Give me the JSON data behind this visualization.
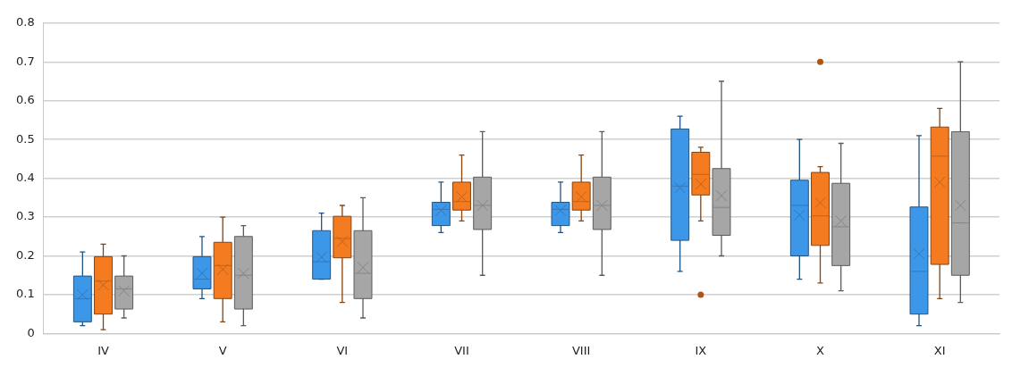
{
  "chart_data": {
    "type": "box",
    "categories": [
      "IV",
      "V",
      "VI",
      "VII",
      "VIII",
      "IX",
      "X",
      "XI"
    ],
    "ylim": [
      0,
      0.8
    ],
    "yticks": [
      0,
      0.1,
      0.2,
      0.3,
      0.4,
      0.5,
      0.6,
      0.7,
      0.8
    ],
    "grid": "y",
    "series": [
      {
        "color": "#3d97e8",
        "boxes": [
          {
            "low": 0.02,
            "q1": 0.03,
            "median": 0.09,
            "q3": 0.148,
            "high": 0.21,
            "mean": 0.1
          },
          {
            "low": 0.09,
            "q1": 0.115,
            "median": 0.14,
            "q3": 0.198,
            "high": 0.25,
            "mean": 0.155
          },
          {
            "low": 0.14,
            "q1": 0.14,
            "median": 0.185,
            "q3": 0.265,
            "high": 0.31,
            "mean": 0.197
          },
          {
            "low": 0.26,
            "q1": 0.278,
            "median": 0.32,
            "q3": 0.338,
            "high": 0.39,
            "mean": 0.317
          },
          {
            "low": 0.26,
            "q1": 0.278,
            "median": 0.32,
            "q3": 0.338,
            "high": 0.39,
            "mean": 0.317
          },
          {
            "low": 0.16,
            "q1": 0.24,
            "median": 0.38,
            "q3": 0.527,
            "high": 0.56,
            "mean": 0.375
          },
          {
            "low": 0.14,
            "q1": 0.2,
            "median": 0.33,
            "q3": 0.395,
            "high": 0.5,
            "mean": 0.305
          },
          {
            "low": 0.02,
            "q1": 0.05,
            "median": 0.16,
            "q3": 0.326,
            "high": 0.51,
            "mean": 0.205
          }
        ]
      },
      {
        "color": "#f47b20",
        "boxes": [
          {
            "low": 0.01,
            "q1": 0.05,
            "median": 0.135,
            "q3": 0.198,
            "high": 0.23,
            "mean": 0.125
          },
          {
            "low": 0.03,
            "q1": 0.09,
            "median": 0.175,
            "q3": 0.235,
            "high": 0.3,
            "mean": 0.165
          },
          {
            "low": 0.08,
            "q1": 0.195,
            "median": 0.245,
            "q3": 0.302,
            "high": 0.33,
            "mean": 0.237
          },
          {
            "low": 0.29,
            "q1": 0.318,
            "median": 0.34,
            "q3": 0.39,
            "high": 0.46,
            "mean": 0.352
          },
          {
            "low": 0.29,
            "q1": 0.318,
            "median": 0.34,
            "q3": 0.39,
            "high": 0.46,
            "mean": 0.352
          },
          {
            "low": 0.29,
            "q1": 0.357,
            "median": 0.41,
            "q3": 0.467,
            "high": 0.48,
            "mean": 0.385,
            "outliers": [
              0.1
            ]
          },
          {
            "low": 0.13,
            "q1": 0.227,
            "median": 0.303,
            "q3": 0.415,
            "high": 0.43,
            "mean": 0.337,
            "outliers": [
              0.7
            ]
          },
          {
            "low": 0.09,
            "q1": 0.178,
            "median": 0.457,
            "q3": 0.532,
            "high": 0.58,
            "mean": 0.39
          }
        ]
      },
      {
        "color": "#a6a6a6",
        "boxes": [
          {
            "low": 0.04,
            "q1": 0.063,
            "median": 0.115,
            "q3": 0.148,
            "high": 0.2,
            "mean": 0.11
          },
          {
            "low": 0.02,
            "q1": 0.063,
            "median": 0.15,
            "q3": 0.25,
            "high": 0.278,
            "mean": 0.155
          },
          {
            "low": 0.04,
            "q1": 0.09,
            "median": 0.155,
            "q3": 0.265,
            "high": 0.35,
            "mean": 0.17
          },
          {
            "low": 0.15,
            "q1": 0.268,
            "median": 0.33,
            "q3": 0.403,
            "high": 0.52,
            "mean": 0.33
          },
          {
            "low": 0.15,
            "q1": 0.268,
            "median": 0.33,
            "q3": 0.403,
            "high": 0.52,
            "mean": 0.33
          },
          {
            "low": 0.2,
            "q1": 0.253,
            "median": 0.325,
            "q3": 0.425,
            "high": 0.65,
            "mean": 0.355
          },
          {
            "low": 0.11,
            "q1": 0.175,
            "median": 0.275,
            "q3": 0.387,
            "high": 0.49,
            "mean": 0.29
          },
          {
            "low": 0.08,
            "q1": 0.15,
            "median": 0.285,
            "q3": 0.52,
            "high": 0.7,
            "mean": 0.33
          }
        ]
      }
    ]
  }
}
